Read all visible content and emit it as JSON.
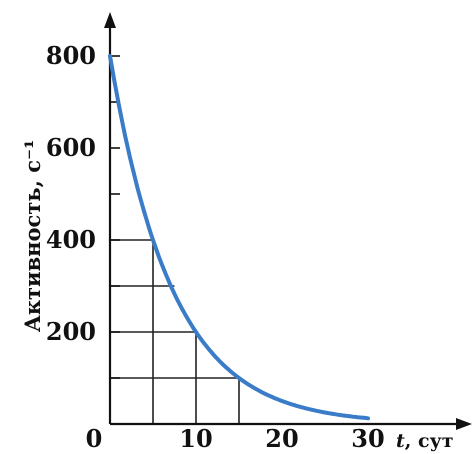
{
  "chart_data": {
    "type": "line",
    "title": "",
    "xlabel": "t, сут",
    "ylabel": "Активность, с⁻¹",
    "xlim": [
      0,
      35
    ],
    "ylim": [
      0,
      850
    ],
    "x_ticks": [
      0,
      10,
      20,
      30
    ],
    "y_ticks": [
      200,
      400,
      600,
      800
    ],
    "grid": "half-life construction lines at t = 5, 10, 15 days",
    "guide_lines": [
      {
        "t": 5,
        "activity": 400
      },
      {
        "t": 10,
        "activity": 200
      },
      {
        "t": 15,
        "activity": 100
      }
    ],
    "series": [
      {
        "color": "#3a7cc8",
        "x": [
          0,
          2.5,
          5,
          7.5,
          10,
          12.5,
          15,
          17.5,
          20,
          22.5,
          25,
          27.5,
          30
        ],
        "y": [
          800,
          566,
          400,
          283,
          200,
          141,
          100,
          71,
          50,
          35,
          25,
          18,
          13
        ]
      }
    ]
  }
}
